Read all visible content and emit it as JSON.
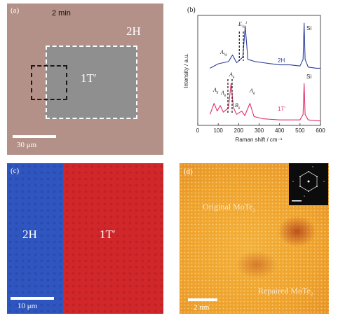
{
  "panel_a": {
    "label": "(a)",
    "time": "2 min",
    "phase_outer": "2H",
    "phase_inner": "1T′",
    "scale_label": "30 μm"
  },
  "panel_b": {
    "label": "(b)",
    "si_top": "Si",
    "si_bottom": "Si",
    "series_2h": "2H",
    "series_1t": "1T′",
    "peaks_top": {
      "a1g_main": "A",
      "a1g_sub": "1g",
      "e2g_main": "E",
      "e2g_sub": "2g",
      "e2g_sup": "1"
    },
    "peaks_bottom": {
      "ag": "A",
      "g": "g",
      "bg": "B"
    },
    "colors": {
      "blue": "#2f3f9e",
      "pink": "#e0306a"
    }
  },
  "chart_data": {
    "type": "line",
    "xlabel": "Raman shift / cm⁻¹",
    "ylabel": "Intensity / a.u.",
    "xlim": [
      0,
      600
    ],
    "x_ticks": [
      "0",
      "100",
      "200",
      "300",
      "400",
      "500",
      "600"
    ],
    "series": [
      {
        "name": "2H",
        "x": [
          60,
          100,
          150,
          170,
          190,
          220,
          232,
          245,
          280,
          320,
          360,
          400,
          450,
          500,
          515,
          520,
          525,
          540,
          580,
          600
        ],
        "y": [
          0.52,
          0.56,
          0.58,
          0.64,
          0.57,
          0.62,
          0.9,
          0.6,
          0.58,
          0.57,
          0.56,
          0.55,
          0.55,
          0.54,
          0.6,
          0.93,
          0.6,
          0.53,
          0.52,
          0.52
        ]
      },
      {
        "name": "1T′",
        "x": [
          60,
          80,
          95,
          110,
          125,
          150,
          163,
          175,
          190,
          215,
          230,
          255,
          275,
          320,
          400,
          500,
          515,
          520,
          525,
          540,
          600
        ],
        "y": [
          0.1,
          0.2,
          0.13,
          0.18,
          0.12,
          0.16,
          0.38,
          0.16,
          0.1,
          0.13,
          0.09,
          0.2,
          0.08,
          0.06,
          0.05,
          0.05,
          0.1,
          0.38,
          0.1,
          0.05,
          0.04
        ]
      }
    ]
  },
  "panel_c": {
    "label": "(c)",
    "phase_left": "2H",
    "phase_right": "1T′",
    "scale_label": "10 μm"
  },
  "panel_d": {
    "label": "(d)",
    "text_original": "Original MoTe",
    "text_original_sub": "2",
    "text_repaired": "Repaired MoTe",
    "text_repaired_sub": "2",
    "scale_label": "2 nm"
  }
}
